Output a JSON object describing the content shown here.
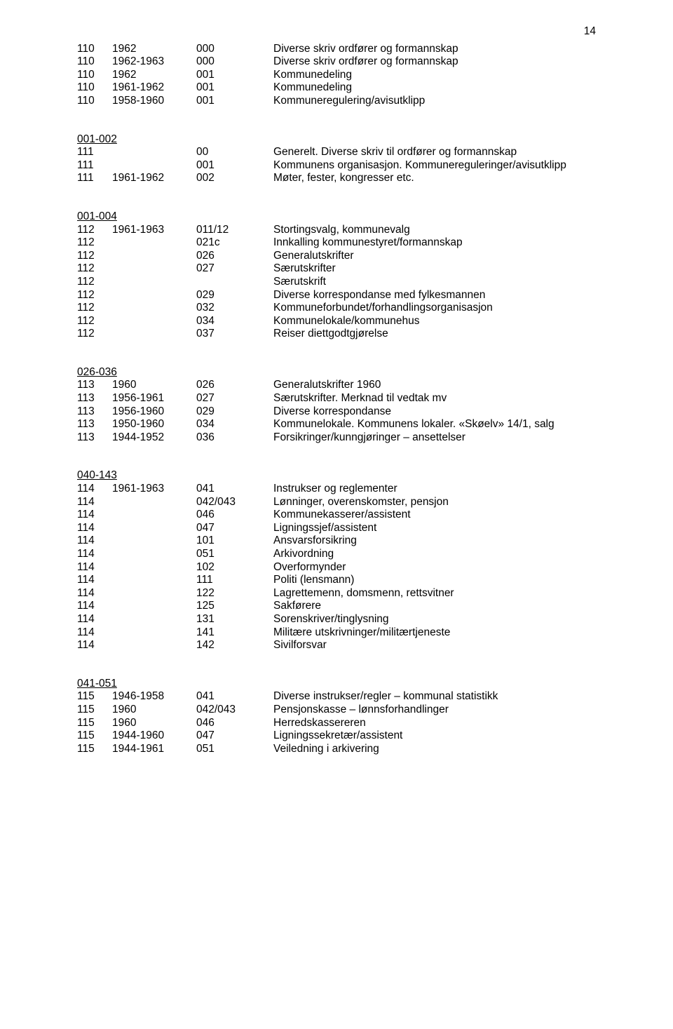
{
  "page_number": "14",
  "sections": [
    {
      "heading": null,
      "rows": [
        {
          "c1": "110",
          "c2": "1962",
          "c3": "000",
          "c4": "Diverse skriv ordfører og formannskap"
        },
        {
          "c1": "110",
          "c2": "1962-1963",
          "c3": "000",
          "c4": "Diverse skriv ordfører og formannskap"
        },
        {
          "c1": "110",
          "c2": "1962",
          "c3": "001",
          "c4": "Kommunedeling"
        },
        {
          "c1": "110",
          "c2": "1961-1962",
          "c3": "001",
          "c4": "Kommunedeling"
        },
        {
          "c1": "110",
          "c2": "1958-1960",
          "c3": "001",
          "c4": "Kommuneregulering/avisutklipp"
        }
      ]
    },
    {
      "heading": "001-002",
      "rows": [
        {
          "c1": "111",
          "c2": "",
          "c3": "00",
          "c4": "Generelt. Diverse skriv til ordfører og formannskap"
        },
        {
          "c1": "111",
          "c2": "",
          "c3": "001",
          "c4": "Kommunens organisasjon. Kommunereguleringer/avisutklipp"
        },
        {
          "c1": "111",
          "c2": "1961-1962",
          "c3": "002",
          "c4": "Møter, fester, kongresser etc."
        }
      ]
    },
    {
      "heading": "001-004",
      "rows": [
        {
          "c1": "112",
          "c2": "1961-1963",
          "c3": "011/12",
          "c4": "Stortingsvalg, kommunevalg"
        },
        {
          "c1": "112",
          "c2": "",
          "c3": "021c",
          "c4": "Innkalling kommunestyret/formannskap"
        },
        {
          "c1": "112",
          "c2": "",
          "c3": "026",
          "c4": "Generalutskrifter"
        },
        {
          "c1": "112",
          "c2": "",
          "c3": "027",
          "c4": "Særutskrifter"
        },
        {
          "c1": "112",
          "c2": "",
          "c3": "",
          "c4": "Særutskrift"
        },
        {
          "c1": "112",
          "c2": "",
          "c3": "029",
          "c4": "Diverse korrespondanse med fylkesmannen"
        },
        {
          "c1": "112",
          "c2": "",
          "c3": "032",
          "c4": "Kommuneforbundet/forhandlingsorganisasjon"
        },
        {
          "c1": "112",
          "c2": "",
          "c3": "034",
          "c4": "Kommunelokale/kommunehus"
        },
        {
          "c1": "112",
          "c2": "",
          "c3": "037",
          "c4": "Reiser diettgodtgjørelse"
        }
      ]
    },
    {
      "heading": "026-036",
      "rows": [
        {
          "c1": "113",
          "c2": "1960",
          "c3": "026",
          "c4": "Generalutskrifter 1960"
        },
        {
          "c1": "113",
          "c2": "1956-1961",
          "c3": "027",
          "c4": "Særutskrifter. Merknad til vedtak mv"
        },
        {
          "c1": "113",
          "c2": "1956-1960",
          "c3": "029",
          "c4": "Diverse korrespondanse"
        },
        {
          "c1": "113",
          "c2": "1950-1960",
          "c3": "034",
          "c4": "Kommunelokale. Kommunens lokaler. «Skøelv» 14/1, salg"
        },
        {
          "c1": "113",
          "c2": "1944-1952",
          "c3": "036",
          "c4": "Forsikringer/kunngjøringer – ansettelser"
        }
      ]
    },
    {
      "heading": "040-143",
      "rows": [
        {
          "c1": "114",
          "c2": "1961-1963",
          "c3": "041",
          "c4": "Instrukser og reglementer"
        },
        {
          "c1": "114",
          "c2": "",
          "c3": "042/043",
          "c4": "Lønninger, overenskomster, pensjon"
        },
        {
          "c1": "114",
          "c2": "",
          "c3": "046",
          "c4": "Kommunekasserer/assistent"
        },
        {
          "c1": "114",
          "c2": "",
          "c3": "047",
          "c4": "Ligningssjef/assistent"
        },
        {
          "c1": "114",
          "c2": "",
          "c3": "101",
          "c4": "Ansvarsforsikring"
        },
        {
          "c1": "114",
          "c2": "",
          "c3": "051",
          "c4": "Arkivordning"
        },
        {
          "c1": "114",
          "c2": "",
          "c3": "102",
          "c4": "Overformynder"
        },
        {
          "c1": "114",
          "c2": "",
          "c3": "111",
          "c4": "Politi (lensmann)"
        },
        {
          "c1": "114",
          "c2": "",
          "c3": "122",
          "c4": "Lagrettemenn, domsmenn, rettsvitner"
        },
        {
          "c1": "114",
          "c2": "",
          "c3": "125",
          "c4": "Sakførere"
        },
        {
          "c1": "114",
          "c2": "",
          "c3": "131",
          "c4": "Sorenskriver/tinglysning"
        },
        {
          "c1": "114",
          "c2": "",
          "c3": "141",
          "c4": "Militære utskrivninger/militærtjeneste"
        },
        {
          "c1": "114",
          "c2": "",
          "c3": "142",
          "c4": "Sivilforsvar"
        }
      ]
    },
    {
      "heading": "041-051",
      "rows": [
        {
          "c1": "115",
          "c2": "1946-1958",
          "c3": "041",
          "c4": "Diverse instrukser/regler – kommunal statistikk"
        },
        {
          "c1": "115",
          "c2": "1960",
          "c3": "042/043",
          "c4": "Pensjonskasse – lønnsforhandlinger"
        },
        {
          "c1": "115",
          "c2": "1960",
          "c3": "046",
          "c4": "Herredskassereren"
        },
        {
          "c1": "115",
          "c2": "1944-1960",
          "c3": "047",
          "c4": "Ligningssekretær/assistent"
        },
        {
          "c1": "115",
          "c2": "1944-1961",
          "c3": "051",
          "c4": "Veiledning i arkivering"
        }
      ]
    }
  ]
}
